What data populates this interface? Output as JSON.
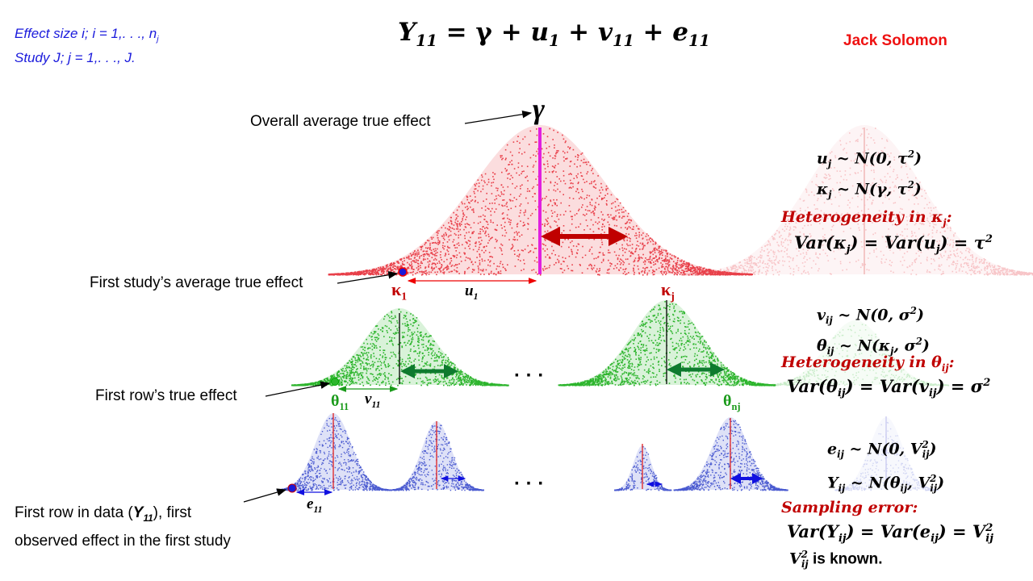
{
  "notes": {
    "line1": "Effect size i; i = 1,. . ., n",
    "line1_sub": "j",
    "line2": "Study J; j = 1,. . ., J."
  },
  "main_equation": {
    "lhs": "Y",
    "lhs_sub": "11",
    "eq": " = γ + ",
    "u": "u",
    "u_sub": "1",
    "plus1": " + ",
    "v": "v",
    "v_sub": "11",
    "plus2": " + ",
    "e": "e",
    "e_sub": "11"
  },
  "author": "Jack Solomon",
  "labels": {
    "overall": "Overall average true effect",
    "gamma": "γ",
    "first_study": "First study’s average true effect",
    "first_row_true": "First row’s true effect",
    "first_row_data_1": "First row in data (",
    "first_row_data_Y": "Y",
    "first_row_data_sub": "11",
    "first_row_data_2": "), first",
    "first_row_data_line2": "observed effect in the first study",
    "kappa": "κ",
    "kappa_1_sub": "1",
    "kappa_j_sub": "j",
    "u1": "u",
    "u1_sub": "1",
    "v11": "v",
    "v11_sub": "11",
    "e11": "e",
    "e11_sub": "11",
    "theta": "θ",
    "theta_11_sub": "11",
    "theta_nj_sub": "nj",
    "dots": "· · ·"
  },
  "level1": {
    "eq1": "u",
    "eq1_sub": "j",
    "eq1_rest": " ~ N(0, τ",
    "eq1_sup": "2",
    "eq1_end": ")",
    "eq2": "κ",
    "eq2_sub": "j",
    "eq2_rest": " ~ N(γ, τ",
    "eq2_sup": "2",
    "eq2_end": ")",
    "heading": "Heterogeneity in κ",
    "heading_sub": "j",
    "heading_end": ":",
    "var": "Var(κ",
    "var_sub": "j",
    "var_mid": ") = Var(u",
    "var_sub2": "j",
    "var_end": ") = τ",
    "var_sup": "2"
  },
  "level2": {
    "eq1": "v",
    "eq1_sub": "ij",
    "eq1_rest": " ~ N(0, σ",
    "eq1_sup": "2",
    "eq1_end": ")",
    "eq2": "θ",
    "eq2_sub": "ij",
    "eq2_rest": " ~ N(κ",
    "eq2_sub2": "j",
    "eq2_mid": ", σ",
    "eq2_sup": "2",
    "eq2_end": ")",
    "heading": "Heterogeneity in θ",
    "heading_sub": "ij",
    "heading_end": ":",
    "var": "Var(θ",
    "var_sub": "ij",
    "var_mid": ") = Var(v",
    "var_sub2": "ij",
    "var_end": ") = σ",
    "var_sup": "2"
  },
  "level3": {
    "eq1": "e",
    "eq1_sub": "ij",
    "eq1_rest": " ~ N(0, V",
    "eq1_sup": "2",
    "eq1_sub2": "ij",
    "eq1_end": ")",
    "eq2": "Y",
    "eq2_sub": "ij",
    "eq2_rest": " ~ N(θ",
    "eq2_sub2": "ij",
    "eq2_mid": ", V",
    "eq2_sup": "2",
    "eq2_sub3": "ij",
    "eq2_end": ")",
    "heading": "Sampling error:",
    "var": "Var(Y",
    "var_sub": "ij",
    "var_mid": ") = Var(e",
    "var_sub2": "ij",
    "var_end": ") = V",
    "var_sup": "2",
    "var_sub3": "ij",
    "known_V": "V",
    "known_sup": "2",
    "known_sub": "ij",
    "known_text": " is known."
  },
  "colors": {
    "red_dist": "#e8404a",
    "green_dist": "#2db52d",
    "blue_dist": "#4a5ad0",
    "magenta": "#e020e0",
    "dark_red_arrow": "#c00000",
    "dark_green_arrow": "#0e7a2e",
    "blue_arrow": "#1010e0",
    "note_blue": "#1a1adc",
    "author_red": "#ee1111"
  }
}
